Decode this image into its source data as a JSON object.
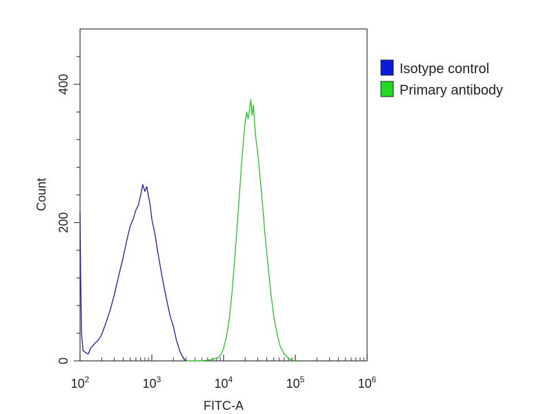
{
  "chart_data": {
    "type": "line",
    "xlabel": "FITC-A",
    "ylabel": "Count",
    "x_scale": "log",
    "xlim": [
      100,
      1000000
    ],
    "ylim": [
      0,
      480
    ],
    "x_ticks": [
      {
        "value": 100,
        "base": "10",
        "exp": "2"
      },
      {
        "value": 1000,
        "base": "10",
        "exp": "3"
      },
      {
        "value": 10000,
        "base": "10",
        "exp": "4"
      },
      {
        "value": 100000,
        "base": "10",
        "exp": "5"
      },
      {
        "value": 1000000,
        "base": "10",
        "exp": "6"
      }
    ],
    "y_ticks": [
      {
        "value": 0,
        "label": "0"
      },
      {
        "value": 200,
        "label": "200"
      },
      {
        "value": 400,
        "label": "400"
      }
    ],
    "grid": false,
    "legend_position": "right",
    "series": [
      {
        "name": "Isotype control",
        "color": "#1a1aa6",
        "legend_color": "#0a1ad8",
        "points": [
          [
            100,
            215
          ],
          [
            102,
            120
          ],
          [
            105,
            40
          ],
          [
            110,
            15
          ],
          [
            120,
            12
          ],
          [
            130,
            10
          ],
          [
            140,
            18
          ],
          [
            160,
            25
          ],
          [
            180,
            30
          ],
          [
            200,
            38
          ],
          [
            230,
            55
          ],
          [
            260,
            72
          ],
          [
            300,
            95
          ],
          [
            340,
            120
          ],
          [
            400,
            150
          ],
          [
            450,
            175
          ],
          [
            500,
            195
          ],
          [
            550,
            205
          ],
          [
            600,
            218
          ],
          [
            650,
            225
          ],
          [
            700,
            240
          ],
          [
            750,
            255
          ],
          [
            800,
            245
          ],
          [
            850,
            252
          ],
          [
            900,
            238
          ],
          [
            950,
            225
          ],
          [
            1000,
            205
          ],
          [
            1100,
            185
          ],
          [
            1200,
            160
          ],
          [
            1400,
            120
          ],
          [
            1600,
            90
          ],
          [
            1800,
            65
          ],
          [
            2000,
            50
          ],
          [
            2200,
            30
          ],
          [
            2500,
            12
          ],
          [
            2800,
            3
          ],
          [
            3000,
            0
          ]
        ]
      },
      {
        "name": "Primary antibody",
        "color": "#22c422",
        "legend_color": "#22d822",
        "points": [
          [
            3000,
            0
          ],
          [
            5000,
            0
          ],
          [
            7000,
            2
          ],
          [
            8500,
            5
          ],
          [
            9500,
            12
          ],
          [
            10000,
            18
          ],
          [
            11000,
            35
          ],
          [
            12000,
            60
          ],
          [
            13000,
            95
          ],
          [
            14000,
            135
          ],
          [
            15000,
            175
          ],
          [
            16000,
            215
          ],
          [
            17000,
            255
          ],
          [
            18000,
            290
          ],
          [
            19000,
            320
          ],
          [
            20000,
            345
          ],
          [
            21000,
            360
          ],
          [
            22000,
            350
          ],
          [
            23000,
            362
          ],
          [
            24000,
            378
          ],
          [
            25000,
            355
          ],
          [
            26000,
            370
          ],
          [
            27000,
            345
          ],
          [
            28000,
            325
          ],
          [
            30000,
            300
          ],
          [
            32000,
            270
          ],
          [
            35000,
            225
          ],
          [
            38000,
            180
          ],
          [
            42000,
            135
          ],
          [
            46000,
            95
          ],
          [
            50000,
            65
          ],
          [
            56000,
            38
          ],
          [
            62000,
            20
          ],
          [
            70000,
            10
          ],
          [
            80000,
            4
          ],
          [
            90000,
            1
          ],
          [
            100000,
            0
          ]
        ]
      }
    ]
  }
}
